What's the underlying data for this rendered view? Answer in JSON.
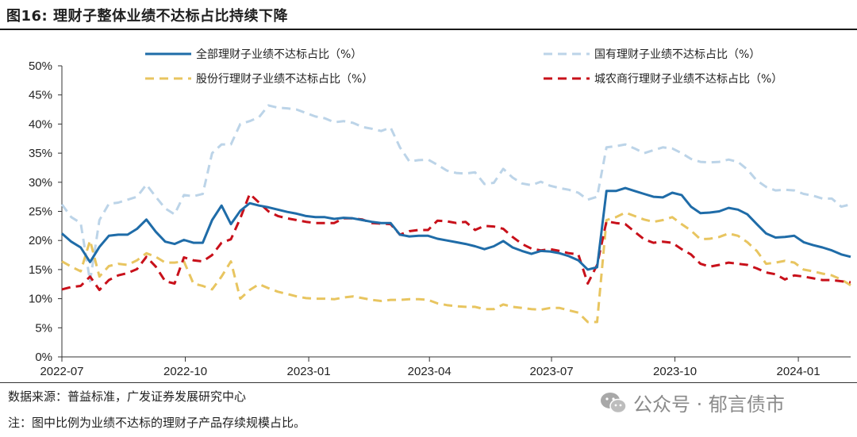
{
  "figure": {
    "title": "图16:  理财子整体业绩不达标占比持续下降",
    "source": "数据来源：普益标准，广发证券发展研究中心",
    "note": "注：图中比例为业绩不达标的理财子产品存续规模占比。",
    "watermark": "公众号 · 郁言债市",
    "watermark_icon": "wechat-icon"
  },
  "chart_data": {
    "type": "line",
    "title": "",
    "xlabel": "",
    "ylabel": "",
    "ylim": [
      0,
      50
    ],
    "yticks": [
      "0%",
      "5%",
      "10%",
      "15%",
      "20%",
      "25%",
      "30%",
      "35%",
      "40%",
      "45%",
      "50%"
    ],
    "xticks": [
      "2022-07",
      "2022-10",
      "2023-01",
      "2023-04",
      "2023-07",
      "2023-10",
      "2024-01"
    ],
    "x": [
      "2022-07-01",
      "2022-07-08",
      "2022-07-15",
      "2022-07-22",
      "2022-07-29",
      "2022-08-05",
      "2022-08-12",
      "2022-08-19",
      "2022-08-26",
      "2022-09-02",
      "2022-09-09",
      "2022-09-16",
      "2022-09-23",
      "2022-09-30",
      "2022-10-07",
      "2022-10-14",
      "2022-10-21",
      "2022-10-28",
      "2022-11-04",
      "2022-11-11",
      "2022-11-18",
      "2022-11-25",
      "2022-12-02",
      "2022-12-09",
      "2022-12-16",
      "2022-12-23",
      "2022-12-30",
      "2023-01-06",
      "2023-01-13",
      "2023-01-20",
      "2023-01-27",
      "2023-02-03",
      "2023-02-10",
      "2023-02-17",
      "2023-02-24",
      "2023-03-03",
      "2023-03-10",
      "2023-03-17",
      "2023-03-24",
      "2023-03-31",
      "2023-04-07",
      "2023-04-14",
      "2023-04-21",
      "2023-04-28",
      "2023-05-05",
      "2023-05-12",
      "2023-05-19",
      "2023-05-26",
      "2023-06-02",
      "2023-06-09",
      "2023-06-16",
      "2023-06-23",
      "2023-06-30",
      "2023-07-07",
      "2023-07-14",
      "2023-07-21",
      "2023-07-28",
      "2023-08-04",
      "2023-08-11",
      "2023-08-18",
      "2023-08-25",
      "2023-09-01",
      "2023-09-08",
      "2023-09-15",
      "2023-09-22",
      "2023-09-29",
      "2023-10-06",
      "2023-10-13",
      "2023-10-20",
      "2023-10-27",
      "2023-11-03",
      "2023-11-10",
      "2023-11-17",
      "2023-11-24",
      "2023-12-01",
      "2023-12-08",
      "2023-12-15",
      "2023-12-22",
      "2023-12-29",
      "2024-01-05",
      "2024-01-12",
      "2024-01-19",
      "2024-01-26",
      "2024-02-02",
      "2024-02-09"
    ],
    "series": [
      {
        "name": "全部理财子业绩不达标占比（%）",
        "color": "#1f6ca8",
        "dash": "solid",
        "values": [
          21.2,
          19.8,
          18.8,
          16.3,
          18.9,
          20.8,
          21.0,
          21.0,
          22.0,
          23.6,
          21.5,
          19.8,
          19.4,
          20.1,
          19.6,
          19.6,
          23.5,
          26.0,
          22.8,
          25.1,
          26.4,
          26.0,
          25.7,
          25.3,
          24.9,
          24.6,
          24.2,
          24.0,
          24.0,
          23.7,
          23.9,
          23.8,
          23.5,
          23.2,
          23.0,
          23.0,
          21.0,
          20.7,
          20.8,
          20.8,
          20.3,
          20.0,
          19.7,
          19.4,
          19.0,
          18.5,
          19.0,
          19.9,
          18.8,
          18.2,
          17.7,
          18.2,
          18.1,
          17.8,
          17.3,
          16.6,
          15.0,
          15.4,
          28.5,
          28.5,
          29.0,
          28.5,
          28.0,
          27.5,
          27.4,
          28.2,
          27.8,
          25.8,
          24.7,
          24.8,
          25.0,
          25.6,
          25.3,
          24.5,
          22.8,
          21.2,
          20.5,
          20.6,
          20.8,
          19.7,
          19.2,
          18.8,
          18.3,
          17.6,
          17.2
        ]
      },
      {
        "name": "国有理财子业绩不达标占比（%）",
        "color": "#bcd4e8",
        "dash": "dash",
        "values": [
          26.2,
          24.0,
          23.0,
          13.0,
          23.5,
          26.3,
          26.5,
          27.0,
          27.5,
          29.6,
          27.5,
          25.5,
          24.5,
          27.8,
          27.6,
          28.0,
          35.0,
          36.5,
          36.5,
          40.0,
          40.5,
          41.2,
          43.2,
          42.8,
          42.7,
          42.5,
          41.9,
          41.3,
          41.0,
          40.3,
          40.5,
          40.2,
          39.5,
          39.2,
          38.8,
          39.4,
          36.0,
          33.6,
          33.8,
          33.9,
          33.0,
          32.0,
          31.6,
          31.5,
          31.7,
          29.7,
          29.9,
          32.3,
          30.8,
          29.8,
          29.5,
          30.1,
          29.4,
          29.0,
          28.7,
          28.2,
          27.0,
          27.5,
          36.0,
          36.2,
          36.5,
          35.8,
          35.0,
          35.5,
          36.0,
          35.8,
          35.0,
          34.0,
          33.5,
          33.4,
          33.5,
          33.9,
          33.5,
          32.2,
          30.3,
          29.2,
          28.6,
          28.7,
          28.6,
          28.0,
          27.7,
          27.2,
          27.2,
          25.8,
          26.2
        ]
      },
      {
        "name": "股份行理财子业绩不达标占比（%）",
        "color": "#e8c560",
        "dash": "dash",
        "values": [
          16.4,
          15.5,
          14.7,
          20.0,
          13.8,
          15.6,
          16.0,
          15.8,
          16.6,
          17.8,
          17.2,
          16.2,
          16.2,
          16.4,
          12.6,
          12.2,
          11.6,
          13.8,
          16.4,
          10.0,
          11.5,
          12.5,
          11.8,
          11.2,
          10.8,
          10.4,
          10.1,
          10.0,
          10.0,
          9.9,
          10.2,
          10.4,
          10.1,
          9.8,
          9.6,
          9.8,
          9.8,
          9.9,
          9.9,
          9.8,
          9.2,
          8.9,
          8.7,
          8.6,
          8.6,
          8.2,
          8.2,
          9.0,
          8.6,
          8.4,
          8.2,
          8.1,
          8.4,
          8.4,
          8.0,
          7.6,
          6.0,
          6.0,
          23.5,
          24.0,
          24.8,
          24.2,
          23.6,
          23.2,
          23.5,
          24.0,
          22.8,
          21.7,
          20.2,
          20.3,
          20.6,
          21.2,
          20.8,
          19.7,
          18.2,
          16.0,
          16.2,
          16.5,
          16.2,
          15.0,
          14.7,
          14.3,
          14.0,
          13.3,
          12.3
        ]
      },
      {
        "name": "城农商行理财子业绩不达标占比（%）",
        "color": "#c8101a",
        "dash": "dash",
        "values": [
          11.6,
          12.0,
          12.2,
          13.8,
          11.5,
          13.2,
          14.0,
          14.4,
          15.1,
          17.2,
          15.5,
          13.0,
          12.6,
          17.1,
          16.6,
          16.4,
          17.5,
          19.6,
          20.2,
          23.8,
          28.0,
          26.5,
          25.0,
          24.2,
          23.8,
          23.5,
          23.2,
          23.0,
          23.0,
          23.0,
          23.8,
          23.8,
          23.6,
          23.0,
          22.9,
          22.8,
          21.0,
          21.6,
          21.8,
          21.8,
          23.4,
          23.3,
          23.0,
          23.2,
          21.8,
          22.5,
          22.4,
          22.0,
          20.6,
          19.4,
          18.6,
          18.3,
          18.5,
          18.2,
          17.8,
          17.6,
          12.6,
          15.8,
          23.3,
          23.0,
          22.8,
          21.5,
          20.2,
          19.6,
          19.8,
          19.6,
          18.5,
          17.6,
          16.0,
          15.5,
          15.8,
          16.2,
          16.0,
          15.8,
          15.2,
          14.5,
          14.2,
          13.3,
          14.0,
          13.8,
          13.5,
          13.2,
          13.2,
          13.0,
          12.8
        ]
      }
    ],
    "legend": "top, two columns",
    "grid": false
  }
}
